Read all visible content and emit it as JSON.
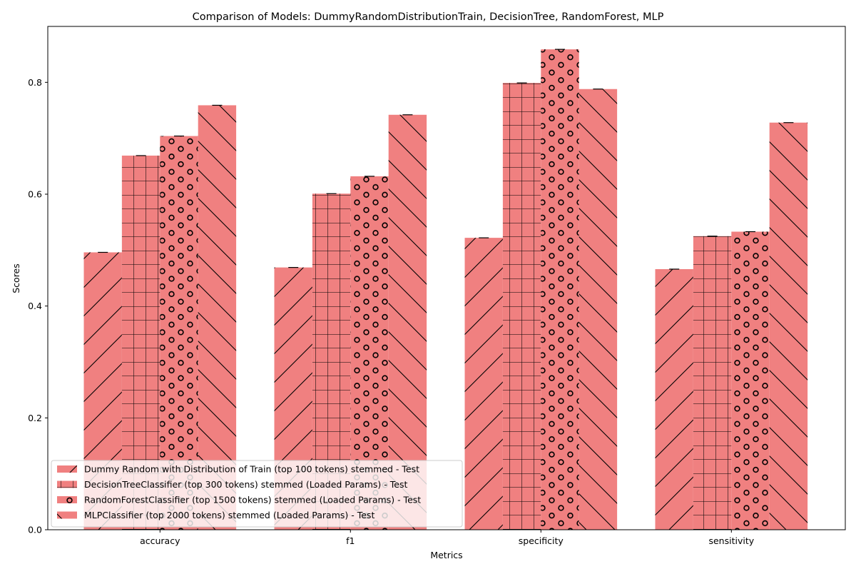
{
  "chart_data": {
    "type": "bar",
    "title": "Comparison of Models: DummyRandomDistributionTrain, DecisionTree, RandomForest, MLP",
    "xlabel": "Metrics",
    "ylabel": "Scores",
    "categories": [
      "accuracy",
      "f1",
      "specificity",
      "sensitivity"
    ],
    "ylim": [
      0,
      0.9
    ],
    "yticks": [
      "0.0",
      "0.2",
      "0.4",
      "0.6",
      "0.8"
    ],
    "bar_color": "#f08080",
    "legend_position": "lower-left",
    "error_bars": true,
    "series": [
      {
        "name": "Dummy Random with Distribution of Train (top 100 tokens) stemmed - Test",
        "hatch": "diagonal-forward",
        "values": [
          0.496,
          0.469,
          0.522,
          0.466
        ]
      },
      {
        "name": "DecisionTreeClassifier (top 300 tokens) stemmed (Loaded Params) - Test",
        "hatch": "grid",
        "values": [
          0.669,
          0.601,
          0.799,
          0.525
        ]
      },
      {
        "name": "RandomForestClassifier (top 1500 tokens) stemmed (Loaded Params) - Test",
        "hatch": "circles",
        "values": [
          0.704,
          0.632,
          0.859,
          0.533
        ]
      },
      {
        "name": "MLPClassifier (top 2000 tokens) stemmed (Loaded Params) - Test",
        "hatch": "diagonal-back",
        "values": [
          0.759,
          0.742,
          0.788,
          0.728
        ]
      }
    ]
  }
}
